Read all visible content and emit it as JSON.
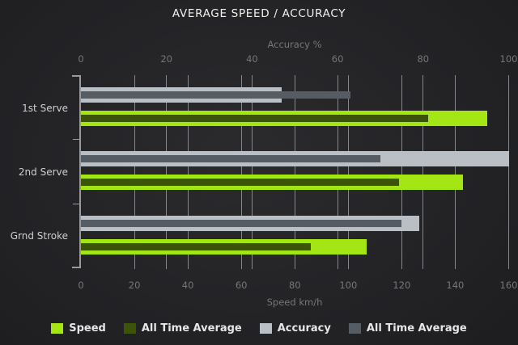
{
  "title": "AVERAGE SPEED / ACCURACY",
  "chart_data": {
    "type": "bar",
    "orientation": "horizontal",
    "grid": true,
    "categories": [
      "1st Serve",
      "2nd Serve",
      "Grnd Stroke"
    ],
    "axes": {
      "top": {
        "label": "Accuracy %",
        "min": 0,
        "max": 100,
        "ticks": [
          0,
          20,
          40,
          60,
          80,
          100
        ]
      },
      "bottom": {
        "label": "Speed km/h",
        "min": 0,
        "max": 160,
        "ticks": [
          0,
          20,
          40,
          60,
          80,
          100,
          120,
          140,
          160
        ]
      }
    },
    "series": [
      {
        "name": "Accuracy",
        "axis": "top",
        "role": "main",
        "color": "#b9bfc4",
        "values": [
          47,
          100,
          79
        ]
      },
      {
        "name": "All Time Average",
        "axis": "top",
        "role": "overlay",
        "color": "#565c63",
        "values": [
          63,
          70,
          75
        ]
      },
      {
        "name": "Speed",
        "axis": "bottom",
        "role": "main",
        "color": "#a3e613",
        "values": [
          152,
          143,
          107
        ]
      },
      {
        "name": "All Time Average",
        "axis": "bottom",
        "role": "overlay",
        "color": "#3c5407",
        "values": [
          130,
          119,
          86
        ]
      }
    ],
    "legend": {
      "position": "bottom",
      "items": [
        {
          "label": "Speed",
          "color": "#a3e613"
        },
        {
          "label": "All Time Average",
          "color": "#3c5407"
        },
        {
          "label": "Accuracy",
          "color": "#b9bfc4"
        },
        {
          "label": "All Time Average",
          "color": "#565c63"
        }
      ]
    }
  }
}
